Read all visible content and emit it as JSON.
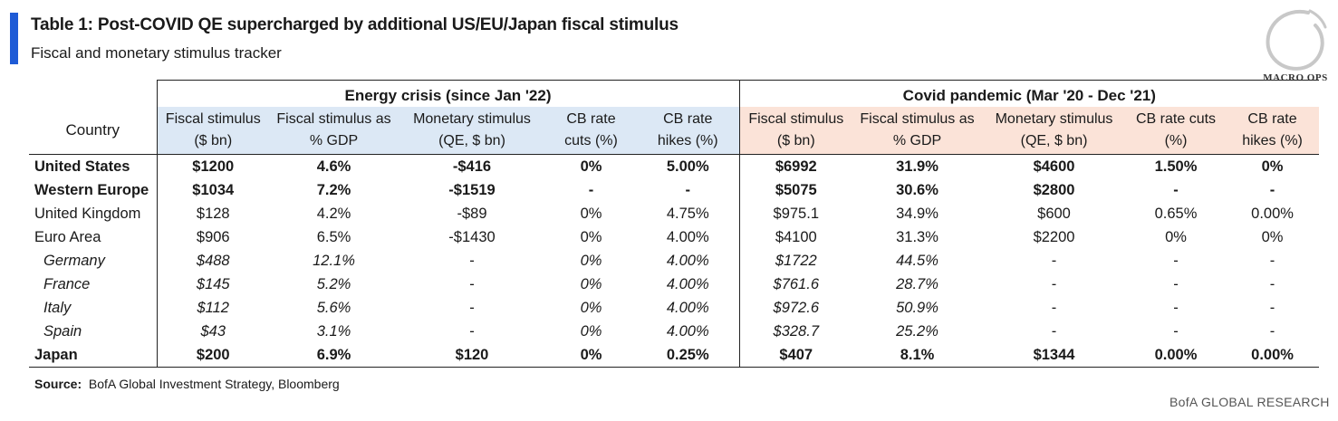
{
  "title": "Table 1: Post-COVID QE supercharged by additional US/EU/Japan fiscal stimulus",
  "subtitle": "Fiscal and monetary stimulus tracker",
  "logo_text": "MACRO OPS",
  "groups": {
    "energy": "Energy crisis (since Jan '22)",
    "covid": "Covid pandemic (Mar '20 - Dec '21)"
  },
  "columns": {
    "country": "Country",
    "fiscal_line1": "Fiscal stimulus",
    "fiscal_line2": "($ bn)",
    "gdp_line1": "Fiscal stimulus as",
    "gdp_line2": "% GDP",
    "monetary_line1": "Monetary stimulus",
    "monetary_line2": "(QE, $ bn)",
    "cuts_e_line1": "CB rate",
    "cuts_e_line2": "cuts (%)",
    "hikes_line1": "CB rate",
    "hikes_line2": "hikes (%)",
    "cuts_c_line1": "CB rate cuts",
    "cuts_c_line2": "(%)"
  },
  "rows": [
    {
      "country": "United States",
      "e_fiscal": "$1200",
      "e_gdp": "4.6%",
      "e_monetary": "-$416",
      "e_cuts": "0%",
      "e_hikes": "5.00%",
      "c_fiscal": "$6992",
      "c_gdp": "31.9%",
      "c_monetary": "$4600",
      "c_cuts": "1.50%",
      "c_hikes": "0%"
    },
    {
      "country": "Western Europe",
      "e_fiscal": "$1034",
      "e_gdp": "7.2%",
      "e_monetary": "-$1519",
      "e_cuts": "-",
      "e_hikes": "-",
      "c_fiscal": "$5075",
      "c_gdp": "30.6%",
      "c_monetary": "$2800",
      "c_cuts": "-",
      "c_hikes": "-"
    },
    {
      "country": "United Kingdom",
      "e_fiscal": "$128",
      "e_gdp": "4.2%",
      "e_monetary": "-$89",
      "e_cuts": "0%",
      "e_hikes": "4.75%",
      "c_fiscal": "$975.1",
      "c_gdp": "34.9%",
      "c_monetary": "$600",
      "c_cuts": "0.65%",
      "c_hikes": "0.00%"
    },
    {
      "country": "Euro Area",
      "e_fiscal": "$906",
      "e_gdp": "6.5%",
      "e_monetary": "-$1430",
      "e_cuts": "0%",
      "e_hikes": "4.00%",
      "c_fiscal": "$4100",
      "c_gdp": "31.3%",
      "c_monetary": "$2200",
      "c_cuts": "0%",
      "c_hikes": "0%"
    },
    {
      "country": "Germany",
      "e_fiscal": "$488",
      "e_gdp": "12.1%",
      "e_monetary": "-",
      "e_cuts": "0%",
      "e_hikes": "4.00%",
      "c_fiscal": "$1722",
      "c_gdp": "44.5%",
      "c_monetary": "-",
      "c_cuts": "-",
      "c_hikes": "-"
    },
    {
      "country": "France",
      "e_fiscal": "$145",
      "e_gdp": "5.2%",
      "e_monetary": "-",
      "e_cuts": "0%",
      "e_hikes": "4.00%",
      "c_fiscal": "$761.6",
      "c_gdp": "28.7%",
      "c_monetary": "-",
      "c_cuts": "-",
      "c_hikes": "-"
    },
    {
      "country": "Italy",
      "e_fiscal": "$112",
      "e_gdp": "5.6%",
      "e_monetary": "-",
      "e_cuts": "0%",
      "e_hikes": "4.00%",
      "c_fiscal": "$972.6",
      "c_gdp": "50.9%",
      "c_monetary": "-",
      "c_cuts": "-",
      "c_hikes": "-"
    },
    {
      "country": "Spain",
      "e_fiscal": "$43",
      "e_gdp": "3.1%",
      "e_monetary": "-",
      "e_cuts": "0%",
      "e_hikes": "4.00%",
      "c_fiscal": "$328.7",
      "c_gdp": "25.2%",
      "c_monetary": "-",
      "c_cuts": "-",
      "c_hikes": "-"
    },
    {
      "country": "Japan",
      "e_fiscal": "$200",
      "e_gdp": "6.9%",
      "e_monetary": "$120",
      "e_cuts": "0%",
      "e_hikes": "0.25%",
      "c_fiscal": "$407",
      "c_gdp": "8.1%",
      "c_monetary": "$1344",
      "c_cuts": "0.00%",
      "c_hikes": "0.00%"
    }
  ],
  "source": {
    "label": "Source:",
    "text": "BofA Global Investment Strategy, Bloomberg"
  },
  "footer": "BofA GLOBAL RESEARCH"
}
